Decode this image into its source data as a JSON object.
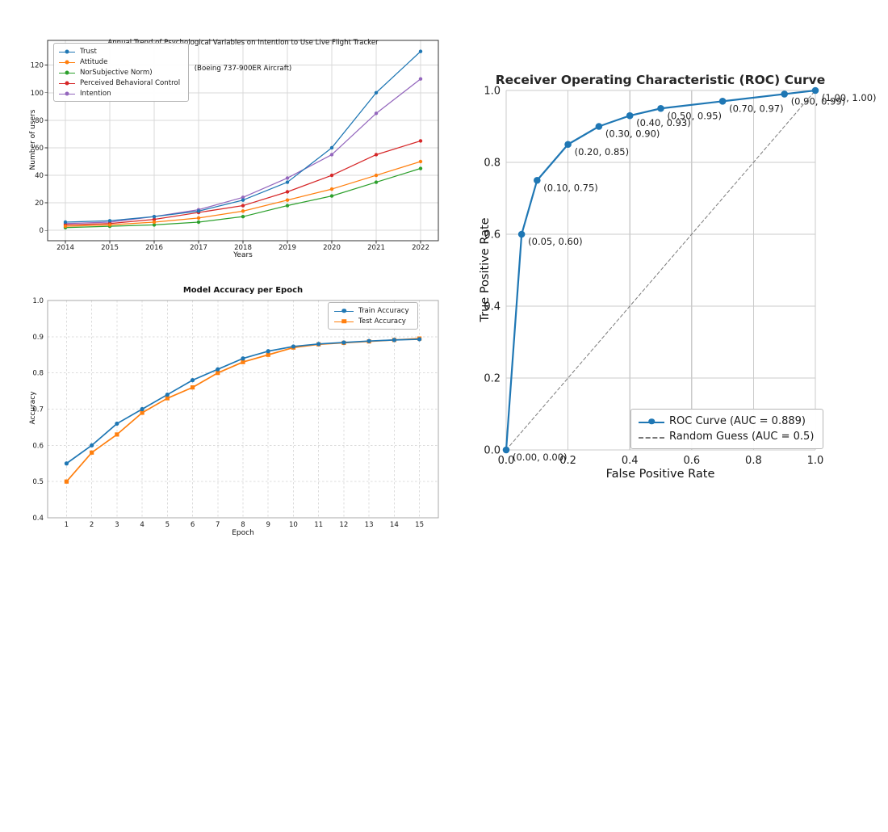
{
  "chart_data": [
    {
      "type": "line",
      "title": "Annual Trend of Psychological Variables on Intention to Use Live Flight Tracker",
      "subtitle": "(Boeing 737-900ER Aircraft)",
      "xlabel": "Years",
      "ylabel": "Number of users",
      "x": [
        2014,
        2015,
        2016,
        2017,
        2018,
        2019,
        2020,
        2021,
        2022
      ],
      "xtick_labels": [
        "2014",
        "2015",
        "2016",
        "2017",
        "2018",
        "2019",
        "2020",
        "2021",
        "2022"
      ],
      "yticks": [
        0,
        20,
        40,
        60,
        80,
        100,
        120
      ],
      "ytick_labels": [
        "0",
        "20",
        "40",
        "60",
        "80",
        "100",
        "120"
      ],
      "xlim": [
        2013.6,
        2022.4
      ],
      "ylim": [
        -7.5,
        138
      ],
      "grid": "solid",
      "legend_position": "upper-left",
      "series": [
        {
          "name": "Trust",
          "color": "#1f77b4",
          "marker": "circle",
          "values": [
            6,
            7,
            10,
            14,
            22,
            35,
            60,
            100,
            130
          ]
        },
        {
          "name": "Attitude",
          "color": "#ff7f0e",
          "marker": "circle",
          "values": [
            3,
            4,
            6,
            9,
            14,
            22,
            30,
            40,
            50
          ]
        },
        {
          "name": "NorSubjective Norm)",
          "color": "#2ca02c",
          "marker": "circle",
          "values": [
            2,
            3,
            4,
            6,
            10,
            18,
            25,
            35,
            45
          ]
        },
        {
          "name": "Perceived Behavioral Control",
          "color": "#d62728",
          "marker": "circle",
          "values": [
            4,
            5,
            8,
            13,
            18,
            28,
            40,
            55,
            65
          ]
        },
        {
          "name": "Intention",
          "color": "#9467bd",
          "marker": "circle",
          "values": [
            5,
            6,
            10,
            15,
            24,
            38,
            55,
            85,
            110
          ]
        }
      ]
    },
    {
      "type": "line",
      "title": "Model Accuracy per Epoch",
      "xlabel": "Epoch",
      "ylabel": "Accuracy",
      "x": [
        1,
        2,
        3,
        4,
        5,
        6,
        7,
        8,
        9,
        10,
        11,
        12,
        13,
        14,
        15
      ],
      "xtick_labels": [
        "1",
        "2",
        "3",
        "4",
        "5",
        "6",
        "7",
        "8",
        "9",
        "10",
        "11",
        "12",
        "13",
        "14",
        "15"
      ],
      "yticks": [
        0.4,
        0.5,
        0.6,
        0.7,
        0.8,
        0.9,
        1.0
      ],
      "ytick_labels": [
        "0.4",
        "0.5",
        "0.6",
        "0.7",
        "0.8",
        "0.9",
        "1.0"
      ],
      "xlim": [
        0.25,
        15.75
      ],
      "ylim": [
        0.4,
        1.0
      ],
      "grid": "dashed",
      "legend_position": "upper-right",
      "series": [
        {
          "name": "Train Accuracy",
          "color": "#1f77b4",
          "marker": "circle",
          "values": [
            0.55,
            0.6,
            0.66,
            0.7,
            0.74,
            0.78,
            0.81,
            0.84,
            0.86,
            0.873,
            0.88,
            0.884,
            0.888,
            0.891,
            0.893
          ]
        },
        {
          "name": "Test Accuracy",
          "color": "#ff7f0e",
          "marker": "square",
          "values": [
            0.5,
            0.58,
            0.63,
            0.69,
            0.73,
            0.76,
            0.8,
            0.83,
            0.85,
            0.87,
            0.879,
            0.883,
            0.887,
            0.891,
            0.895
          ]
        }
      ]
    },
    {
      "type": "line",
      "title": "Receiver Operating Characteristic (ROC) Curve",
      "xlabel": "False Positive Rate",
      "ylabel": "True Positive Rate",
      "xticks": [
        0,
        0.2,
        0.4,
        0.6,
        0.8,
        1
      ],
      "xtick_labels": [
        "0.0",
        "0.2",
        "0.4",
        "0.6",
        "0.8",
        "1.0"
      ],
      "yticks": [
        0,
        0.2,
        0.4,
        0.6,
        0.8,
        1
      ],
      "ytick_labels": [
        "0.0",
        "0.2",
        "0.4",
        "0.6",
        "0.8",
        "1.0"
      ],
      "xlim": [
        0,
        1
      ],
      "ylim": [
        0,
        1
      ],
      "grid": "solid",
      "legend_position": "lower-right",
      "auc": "0.889",
      "series": [
        {
          "name": "ROC Curve (AUC = 0.889)",
          "color": "#1f77b4",
          "marker": "circle",
          "x": [
            0.0,
            0.05,
            0.1,
            0.2,
            0.3,
            0.4,
            0.5,
            0.7,
            0.9,
            1.0
          ],
          "values": [
            0.0,
            0.6,
            0.75,
            0.85,
            0.9,
            0.93,
            0.95,
            0.97,
            0.99,
            1.0
          ]
        },
        {
          "name": "Random Guess (AUC = 0.5)",
          "color": "#7a7a7a",
          "marker": "none",
          "dash": true,
          "x": [
            0,
            1
          ],
          "values": [
            0,
            1
          ]
        }
      ],
      "annotations": [
        {
          "x": 0.0,
          "y": 0.0,
          "text": "(0.00, 0.00)"
        },
        {
          "x": 0.05,
          "y": 0.6,
          "text": "(0.05, 0.60)"
        },
        {
          "x": 0.1,
          "y": 0.75,
          "text": "(0.10, 0.75)"
        },
        {
          "x": 0.2,
          "y": 0.85,
          "text": "(0.20, 0.85)"
        },
        {
          "x": 0.3,
          "y": 0.9,
          "text": "(0.30, 0.90)"
        },
        {
          "x": 0.4,
          "y": 0.93,
          "text": "(0.40, 0.93)"
        },
        {
          "x": 0.5,
          "y": 0.95,
          "text": "(0.50, 0.95)"
        },
        {
          "x": 0.7,
          "y": 0.97,
          "text": "(0.70, 0.97)"
        },
        {
          "x": 0.9,
          "y": 0.99,
          "text": "(0.90, 0.99)"
        },
        {
          "x": 1.0,
          "y": 1.0,
          "text": "(1.00, 1.00)"
        }
      ]
    }
  ]
}
